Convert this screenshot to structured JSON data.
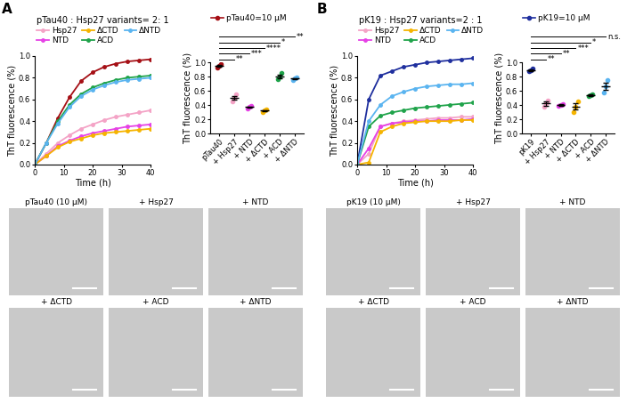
{
  "chart_data": [
    {
      "type": "line",
      "title": "pTau40 : Hsp27 variants= 2: 1",
      "x_label": "Time (h)",
      "y_label": "ThT fluorescence (%)",
      "x": [
        0,
        4,
        8,
        12,
        16,
        20,
        24,
        28,
        32,
        36,
        40
      ],
      "xlim": [
        0,
        40
      ],
      "xticks": [
        0,
        10,
        20,
        30,
        40
      ],
      "ylim": [
        0,
        1.0
      ],
      "yticks": [
        {
          "value": 0,
          "label": "0.0"
        },
        0.2,
        0.4,
        0.6,
        0.8,
        {
          "value": 1,
          "label": "1.0"
        }
      ],
      "legend": "upper left",
      "marker": "circle",
      "series": [
        {
          "color": "#a50f15",
          "values": [
            0,
            0.2,
            0.43,
            0.62,
            0.77,
            0.85,
            0.9,
            0.93,
            0.95,
            0.96,
            0.97
          ]
        },
        {
          "name": "Hsp27",
          "color": "#f4a3c6",
          "values": [
            0,
            0.1,
            0.2,
            0.27,
            0.33,
            0.37,
            0.41,
            0.44,
            0.46,
            0.48,
            0.5
          ]
        },
        {
          "name": "NTD",
          "color": "#e642e6",
          "values": [
            0,
            0.08,
            0.17,
            0.22,
            0.26,
            0.29,
            0.31,
            0.33,
            0.35,
            0.36,
            0.37
          ]
        },
        {
          "name": "ΔCTD",
          "color": "#f5b400",
          "values": [
            0,
            0.08,
            0.16,
            0.21,
            0.24,
            0.27,
            0.29,
            0.3,
            0.31,
            0.32,
            0.33
          ]
        },
        {
          "name": "ACD",
          "color": "#1fa34a",
          "values": [
            0,
            0.2,
            0.4,
            0.55,
            0.65,
            0.71,
            0.75,
            0.78,
            0.8,
            0.81,
            0.82
          ]
        },
        {
          "name": "ΔNTD",
          "color": "#5ab4f0",
          "values": [
            0,
            0.2,
            0.38,
            0.53,
            0.63,
            0.69,
            0.73,
            0.76,
            0.78,
            0.79,
            0.8
          ]
        }
      ]
    },
    {
      "type": "dot",
      "y_label": "ThT fluorescence (%)",
      "categories": [
        "pTau40",
        "+ Hsp27",
        "+ NTD",
        "+ ΔCTD",
        "+ ACD",
        "+ ΔNTD"
      ],
      "colors": [
        "#a50f15",
        "#f4a3c6",
        "#e642e6",
        "#f5b400",
        "#1fa34a",
        "#5ab4f0"
      ],
      "ylim": [
        0,
        1.0
      ],
      "yticks": [
        {
          "value": 0,
          "label": "0.0"
        },
        0.2,
        0.4,
        0.6,
        0.8,
        {
          "value": 1,
          "label": "1.0"
        }
      ],
      "legend": "upper left",
      "series": [
        {
          "name": "pTau40=10 μM",
          "color": "#a50f15",
          "values": [
            [
              0.93,
              0.95,
              0.97
            ],
            [
              0.45,
              0.5,
              0.55
            ],
            [
              0.35,
              0.37,
              0.39
            ],
            [
              0.3,
              0.32,
              0.34
            ],
            [
              0.76,
              0.8,
              0.85
            ],
            [
              0.75,
              0.77,
              0.79
            ]
          ],
          "means": [
            0.95,
            0.5,
            0.37,
            0.32,
            0.8,
            0.77
          ],
          "errors": [
            0.01,
            0.03,
            0.01,
            0.01,
            0.03,
            0.01
          ]
        }
      ],
      "comparisons": [
        {
          "to": "+ Hsp27",
          "label": "**"
        },
        {
          "to": "+ NTD",
          "label": "***"
        },
        {
          "to": "+ ΔCTD",
          "label": "****"
        },
        {
          "to": "+ ACD",
          "label": "*"
        },
        {
          "to": "+ ΔNTD",
          "label": "**"
        }
      ]
    },
    {
      "type": "line",
      "title": "pK19 : Hsp27 variants=2 : 1",
      "x_label": "Time (h)",
      "y_label": "ThT fluorescence (%)",
      "x": [
        0,
        4,
        8,
        12,
        16,
        20,
        24,
        28,
        32,
        36,
        40
      ],
      "xlim": [
        0,
        40
      ],
      "xticks": [
        0,
        10,
        20,
        30,
        40
      ],
      "ylim": [
        0,
        1.0
      ],
      "yticks": [
        {
          "value": 0,
          "label": "0.0"
        },
        0.2,
        0.4,
        0.6,
        0.8,
        {
          "value": 1,
          "label": "1.0"
        }
      ],
      "legend": "upper left",
      "marker": "circle",
      "series": [
        {
          "color": "#1f2f9e",
          "values": [
            0,
            0.6,
            0.82,
            0.86,
            0.9,
            0.92,
            0.94,
            0.95,
            0.96,
            0.97,
            0.98
          ]
        },
        {
          "name": "Hsp27",
          "color": "#f4a3c6",
          "values": [
            0,
            0.1,
            0.35,
            0.38,
            0.4,
            0.41,
            0.42,
            0.43,
            0.43,
            0.44,
            0.44
          ]
        },
        {
          "name": "NTD",
          "color": "#e642e6",
          "values": [
            0,
            0.15,
            0.35,
            0.38,
            0.39,
            0.4,
            0.4,
            0.41,
            0.41,
            0.41,
            0.42
          ]
        },
        {
          "name": "ΔCTD",
          "color": "#f5b400",
          "values": [
            0,
            0.02,
            0.3,
            0.35,
            0.38,
            0.39,
            0.4,
            0.4,
            0.4,
            0.41,
            0.41
          ]
        },
        {
          "name": "ACD",
          "color": "#1fa34a",
          "values": [
            0,
            0.35,
            0.45,
            0.48,
            0.5,
            0.52,
            0.53,
            0.54,
            0.55,
            0.56,
            0.57
          ]
        },
        {
          "name": "ΔNTD",
          "color": "#5ab4f0",
          "values": [
            0,
            0.4,
            0.55,
            0.63,
            0.67,
            0.7,
            0.72,
            0.73,
            0.74,
            0.74,
            0.75
          ]
        }
      ]
    },
    {
      "type": "dot",
      "y_label": "ThT fluorescence (%)",
      "categories": [
        "pK19",
        "+ Hsp27",
        "+ NTD",
        "+ ΔCTD",
        "+ ACD",
        "+ ΔNTD"
      ],
      "colors": [
        "#1f2f9e",
        "#f4a3c6",
        "#e642e6",
        "#f5b400",
        "#1fa34a",
        "#5ab4f0"
      ],
      "ylim": [
        0,
        1.0
      ],
      "yticks": [
        {
          "value": 0,
          "label": "0.0"
        },
        0.2,
        0.4,
        0.6,
        0.8,
        {
          "value": 1,
          "label": "1.0"
        }
      ],
      "legend": "upper left",
      "series": [
        {
          "name": "pK19=10 μM",
          "color": "#1f2f9e",
          "values": [
            [
              0.87,
              0.89,
              0.91
            ],
            [
              0.37,
              0.42,
              0.46
            ],
            [
              0.39,
              0.4,
              0.41
            ],
            [
              0.3,
              0.38,
              0.45
            ],
            [
              0.53,
              0.54,
              0.55
            ],
            [
              0.58,
              0.66,
              0.75
            ]
          ],
          "means": [
            0.89,
            0.42,
            0.4,
            0.38,
            0.54,
            0.66
          ],
          "errors": [
            0.01,
            0.03,
            0.01,
            0.04,
            0.01,
            0.05
          ]
        }
      ],
      "comparisons": [
        {
          "to": "+ Hsp27",
          "label": "**"
        },
        {
          "to": "+ NTD",
          "label": "**"
        },
        {
          "to": "+ ΔCTD",
          "label": "***"
        },
        {
          "to": "+ ACD",
          "label": "*"
        },
        {
          "to": "+ ΔNTD",
          "label": "n.s."
        }
      ]
    }
  ],
  "panel_labels": [
    "A",
    "B"
  ],
  "micrographs": [
    {
      "panel": "A",
      "labels": [
        "pTau40 (10 μM)",
        "+ Hsp27",
        "+ NTD",
        "+ ΔCTD",
        "+ ACD",
        "+ ΔNTD"
      ]
    },
    {
      "panel": "B",
      "labels": [
        "pK19 (10 μM)",
        "+ Hsp27",
        "+ NTD",
        "+ ΔCTD",
        "+ ACD",
        "+ ΔNTD"
      ]
    }
  ]
}
